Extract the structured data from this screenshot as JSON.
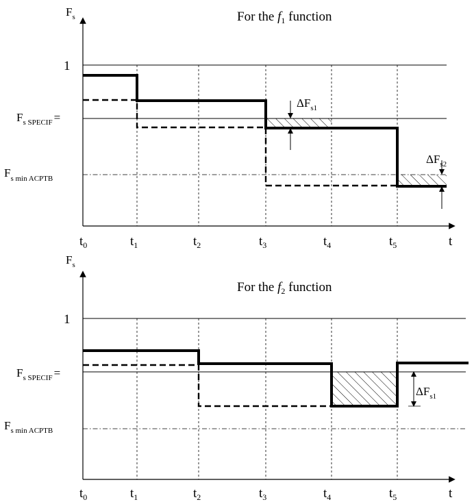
{
  "top_chart": {
    "title_prefix": "For the ",
    "title_italic": "f",
    "title_sub": "1",
    "title_suffix": " function",
    "y_axis_label": "F",
    "y_axis_sub": "s",
    "level_one_label": "1",
    "specif_label": "F",
    "specif_sub": "s SPECIF",
    "specif_eq": "=",
    "min_label": "F",
    "min_sub": "s  min ACPTB",
    "delta1_label": "ΔF",
    "delta1_sub": "s1",
    "delta2_label": "ΔF",
    "delta2_sub": "s2",
    "x_axis_label": "t",
    "ticks": [
      {
        "main": "t",
        "sub": "0"
      },
      {
        "main": "t",
        "sub": "1"
      },
      {
        "main": "t",
        "sub": "2"
      },
      {
        "main": "t",
        "sub": "3"
      },
      {
        "main": "t",
        "sub": "4"
      },
      {
        "main": "t",
        "sub": "5"
      }
    ]
  },
  "bottom_chart": {
    "title_prefix": "For the ",
    "title_italic": "f",
    "title_sub": "2",
    "title_suffix": " function",
    "y_axis_label": "F",
    "y_axis_sub": "s",
    "level_one_label": "1",
    "specif_label": "F",
    "specif_sub": "s SPECIF",
    "specif_eq": "=",
    "min_label": "F",
    "min_sub": "s min ACPTB",
    "delta1_label": "ΔF",
    "delta1_sub": "s1",
    "x_axis_label": "t",
    "ticks": [
      {
        "main": "t",
        "sub": "0"
      },
      {
        "main": "t",
        "sub": "1"
      },
      {
        "main": "t",
        "sub": "2"
      },
      {
        "main": "t",
        "sub": "3"
      },
      {
        "main": "t",
        "sub": "4"
      },
      {
        "main": "t",
        "sub": "5"
      }
    ]
  }
}
